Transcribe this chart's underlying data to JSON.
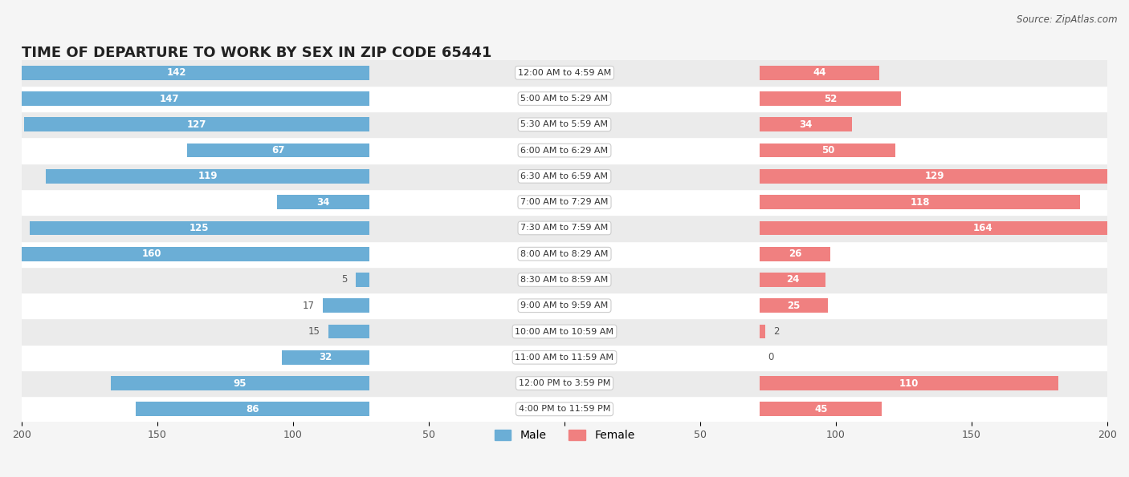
{
  "title": "TIME OF DEPARTURE TO WORK BY SEX IN ZIP CODE 65441",
  "source": "Source: ZipAtlas.com",
  "categories": [
    "12:00 AM to 4:59 AM",
    "5:00 AM to 5:29 AM",
    "5:30 AM to 5:59 AM",
    "6:00 AM to 6:29 AM",
    "6:30 AM to 6:59 AM",
    "7:00 AM to 7:29 AM",
    "7:30 AM to 7:59 AM",
    "8:00 AM to 8:29 AM",
    "8:30 AM to 8:59 AM",
    "9:00 AM to 9:59 AM",
    "10:00 AM to 10:59 AM",
    "11:00 AM to 11:59 AM",
    "12:00 PM to 3:59 PM",
    "4:00 PM to 11:59 PM"
  ],
  "male": [
    142,
    147,
    127,
    67,
    119,
    34,
    125,
    160,
    5,
    17,
    15,
    32,
    95,
    86
  ],
  "female": [
    44,
    52,
    34,
    50,
    129,
    118,
    164,
    26,
    24,
    25,
    2,
    0,
    110,
    45
  ],
  "male_color": "#6baed6",
  "female_color": "#f08080",
  "male_label_color_inside": "#ffffff",
  "male_label_color_outside": "#555555",
  "female_label_color_inside": "#ffffff",
  "female_label_color_outside": "#555555",
  "xlim": 200,
  "background_color": "#f0f0f0",
  "row_bg_colors": [
    "#ffffff",
    "#e8e8e8"
  ],
  "title_fontsize": 13,
  "axis_fontsize": 10,
  "legend_fontsize": 10,
  "category_fontsize": 9
}
